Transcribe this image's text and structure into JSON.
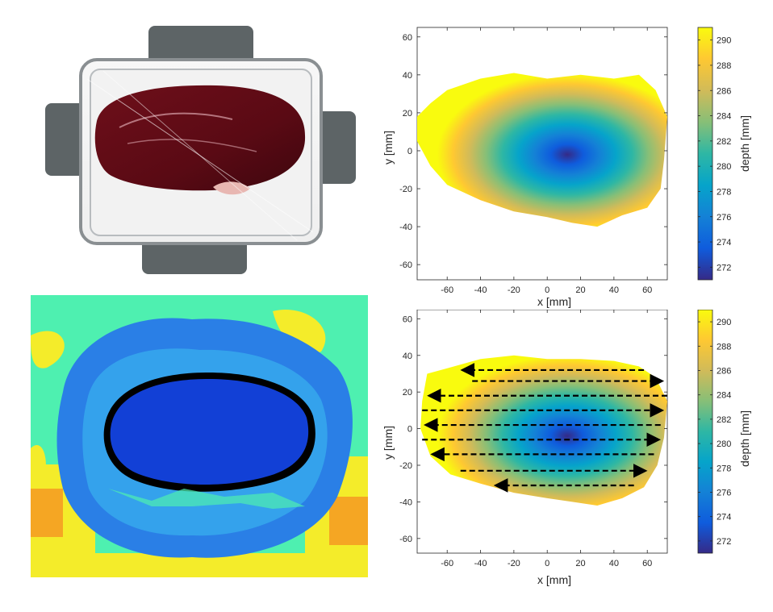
{
  "colors": {
    "parula": [
      "#352a87",
      "#0f5cdd",
      "#1481d6",
      "#06a4ca",
      "#2eb7a4",
      "#87bf77",
      "#d1bb59",
      "#fec832",
      "#f9fb0e"
    ],
    "map_blue": "#1240d6",
    "map_mid_blue": "#2a7fe6",
    "map_cyan": "#3cc0f0",
    "map_green": "#4ef0b0",
    "map_yellow": "#f4ec2a",
    "map_orange": "#f5a623"
  },
  "icons": {
    "photo": "tissue-in-container-photo",
    "depthmap": "raw-depth-camera-map"
  },
  "chart_data": [
    {
      "type": "heatmap",
      "title": "",
      "xlabel": "x [mm]",
      "ylabel": "y [mm]",
      "colorbar_label": "depth [mm]",
      "xlim": [
        -78,
        72
      ],
      "ylim": [
        -68,
        65
      ],
      "xticks": [
        -60,
        -40,
        -20,
        0,
        20,
        40,
        60
      ],
      "yticks": [
        -60,
        -40,
        -20,
        0,
        20,
        40,
        60
      ],
      "clim": [
        271,
        291
      ],
      "colorbar_ticks": [
        272,
        274,
        276,
        278,
        280,
        282,
        284,
        286,
        288,
        290
      ],
      "depth_min_location": [
        12,
        -2
      ],
      "outline": [
        [
          -78,
          18
        ],
        [
          -70,
          25
        ],
        [
          -60,
          32
        ],
        [
          -40,
          38
        ],
        [
          -20,
          41
        ],
        [
          0,
          38
        ],
        [
          20,
          40
        ],
        [
          40,
          38
        ],
        [
          55,
          40
        ],
        [
          65,
          32
        ],
        [
          72,
          18
        ],
        [
          70,
          -5
        ],
        [
          68,
          -20
        ],
        [
          60,
          -30
        ],
        [
          45,
          -34
        ],
        [
          30,
          -40
        ],
        [
          15,
          -38
        ],
        [
          0,
          -35
        ],
        [
          -20,
          -32
        ],
        [
          -40,
          -26
        ],
        [
          -60,
          -18
        ],
        [
          -70,
          -8
        ],
        [
          -78,
          5
        ]
      ],
      "grid": false
    },
    {
      "type": "heatmap",
      "title": "",
      "xlabel": "x [mm]",
      "ylabel": "y [mm]",
      "colorbar_label": "depth [mm]",
      "xlim": [
        -78,
        72
      ],
      "ylim": [
        -68,
        65
      ],
      "xticks": [
        -60,
        -40,
        -20,
        0,
        20,
        40,
        60
      ],
      "yticks": [
        -60,
        -40,
        -20,
        0,
        20,
        40,
        60
      ],
      "clim": [
        271,
        291
      ],
      "colorbar_ticks": [
        272,
        274,
        276,
        278,
        280,
        282,
        284,
        286,
        288,
        290
      ],
      "depth_min_location": [
        12,
        -4
      ],
      "outline": [
        [
          -72,
          30
        ],
        [
          -60,
          33
        ],
        [
          -40,
          38
        ],
        [
          -20,
          40
        ],
        [
          0,
          38
        ],
        [
          20,
          38
        ],
        [
          40,
          37
        ],
        [
          55,
          34
        ],
        [
          65,
          28
        ],
        [
          72,
          15
        ],
        [
          70,
          -5
        ],
        [
          66,
          -20
        ],
        [
          58,
          -32
        ],
        [
          45,
          -38
        ],
        [
          30,
          -42
        ],
        [
          15,
          -40
        ],
        [
          0,
          -38
        ],
        [
          -20,
          -35
        ],
        [
          -40,
          -30
        ],
        [
          -58,
          -25
        ],
        [
          -70,
          -15
        ],
        [
          -76,
          0
        ],
        [
          -75,
          15
        ]
      ],
      "annotations": "scan path arrows",
      "arrows": [
        {
          "y": 32,
          "x_from": 58,
          "x_to": -50
        },
        {
          "y": 26,
          "x_from": -45,
          "x_to": 68
        },
        {
          "y": 18,
          "x_from": 72,
          "x_to": -70
        },
        {
          "y": 10,
          "x_from": -75,
          "x_to": 68
        },
        {
          "y": 2,
          "x_from": 68,
          "x_to": -72
        },
        {
          "y": -6,
          "x_from": -75,
          "x_to": 66
        },
        {
          "y": -14,
          "x_from": 64,
          "x_to": -68
        },
        {
          "y": -23,
          "x_from": -52,
          "x_to": 58
        },
        {
          "y": -31,
          "x_from": 52,
          "x_to": -30
        }
      ],
      "grid": false
    }
  ]
}
